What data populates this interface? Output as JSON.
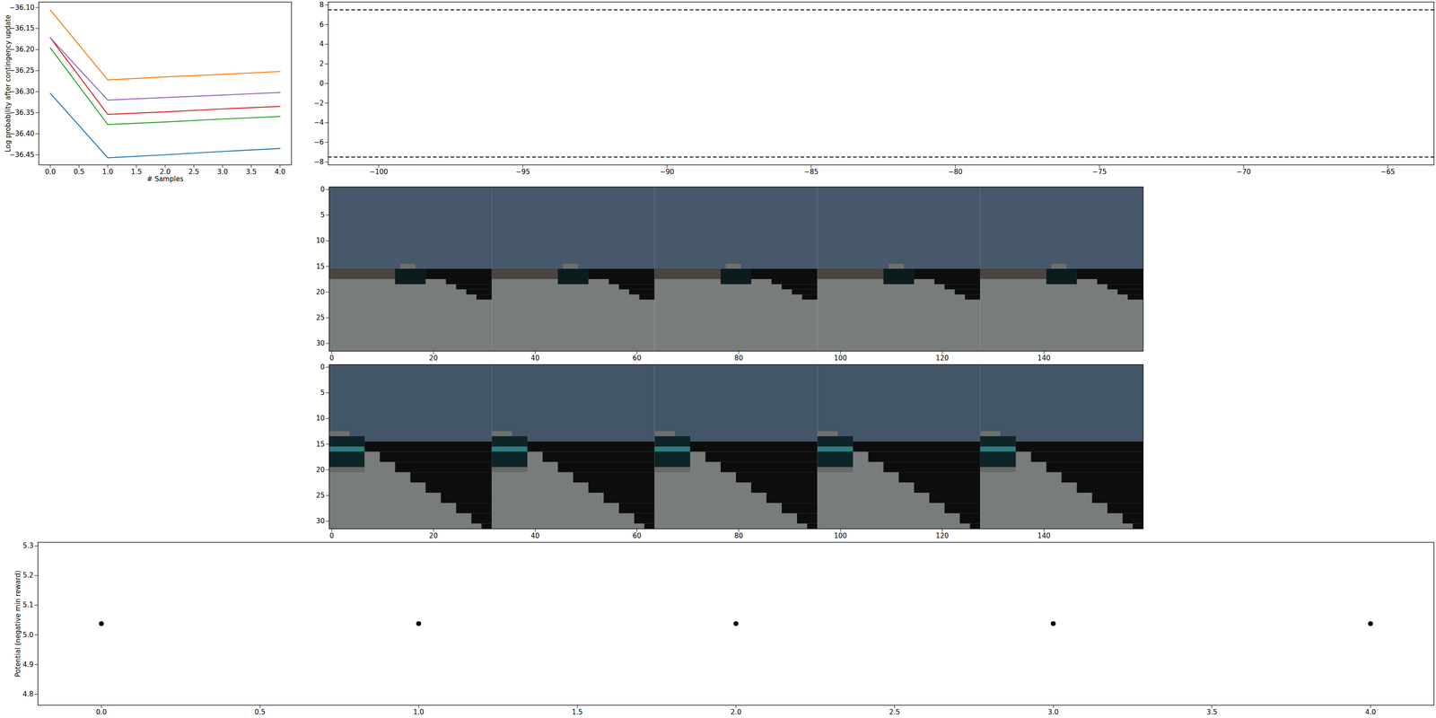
{
  "chart_data": [
    {
      "type": "line",
      "xlabel": "# Samples",
      "ylabel": "Log probability after contingency update",
      "x": [
        0,
        1,
        2,
        3,
        4
      ],
      "xlim": [
        -0.2,
        4.2
      ],
      "xticks": [
        {
          "value": 0,
          "label": "0.0"
        },
        {
          "value": 0.5,
          "label": "0.5"
        },
        {
          "value": 1,
          "label": "1.0"
        },
        {
          "value": 1.5,
          "label": "1.5"
        },
        {
          "value": 2,
          "label": "2.0"
        },
        {
          "value": 2.5,
          "label": "2.5"
        },
        {
          "value": 3,
          "label": "3.0"
        },
        {
          "value": 3.5,
          "label": "3.5"
        },
        {
          "value": 4,
          "label": "4.0"
        }
      ],
      "ylim": [
        -36.474,
        -36.087
      ],
      "yticks": [
        {
          "value": -36.45,
          "label": "−36.45"
        },
        {
          "value": -36.4,
          "label": "−36.40"
        },
        {
          "value": -36.35,
          "label": "−36.35"
        },
        {
          "value": -36.3,
          "label": "−36.30"
        },
        {
          "value": -36.25,
          "label": "−36.25"
        },
        {
          "value": -36.2,
          "label": "−36.20"
        },
        {
          "value": -36.15,
          "label": "−36.15"
        },
        {
          "value": -36.1,
          "label": "−36.10"
        }
      ],
      "series": [
        {
          "color": "#1f77b4",
          "values": [
            -36.304,
            -36.457,
            -36.45,
            -36.442,
            -36.435
          ]
        },
        {
          "color": "#ff7f0e",
          "values": [
            -36.106,
            -36.272,
            -36.265,
            -36.259,
            -36.252
          ]
        },
        {
          "color": "#2ca02c",
          "values": [
            -36.196,
            -36.378,
            -36.372,
            -36.365,
            -36.359
          ]
        },
        {
          "color": "#d62728",
          "values": [
            -36.172,
            -36.354,
            -36.348,
            -36.341,
            -36.335
          ]
        },
        {
          "color": "#9467bd",
          "values": [
            -36.172,
            -36.32,
            -36.314,
            -36.308,
            -36.302
          ]
        }
      ]
    },
    {
      "type": "line",
      "x": [],
      "series": [],
      "xlim": [
        -101.75,
        -63.4
      ],
      "xticks": [
        -100,
        -95,
        -90,
        -85,
        -80,
        -75,
        -70,
        -65
      ],
      "ylim": [
        -8.3,
        8.3
      ],
      "yticks": [
        -8,
        -6,
        -4,
        -2,
        0,
        2,
        4,
        6,
        8
      ],
      "hlines": [
        7.5,
        -7.5
      ],
      "line_style": "dashed",
      "color": "#000000"
    },
    {
      "type": "image",
      "xlim": [
        -0.5,
        159.5
      ],
      "ylim": [
        31.5,
        -0.5
      ],
      "xticks": [
        0,
        20,
        40,
        60,
        80,
        100,
        120,
        140
      ],
      "yticks": [
        0,
        5,
        10,
        15,
        20,
        25,
        30
      ],
      "frame_offsets": [
        0,
        32,
        64,
        96,
        128
      ],
      "regions": [
        {
          "x1": -0.5,
          "x2": 31.5,
          "y1": -0.5,
          "y2": 15.5,
          "color": "#465869"
        },
        {
          "x1": -0.5,
          "x2": 31.5,
          "y1": 15.5,
          "y2": 31.5,
          "color": "#787d7c"
        },
        {
          "x1": -0.5,
          "x2": 18.5,
          "y1": 15.5,
          "y2": 17.5,
          "color": "#4b4542"
        },
        {
          "x1": 13.5,
          "x2": 16.5,
          "y1": 14.5,
          "y2": 15.5,
          "color": "#6e6e6e"
        },
        {
          "x1": 12.5,
          "x2": 18.5,
          "y1": 15.5,
          "y2": 18.5,
          "color": "#0b1c1e"
        },
        {
          "x1": 18.5,
          "x2": 31.5,
          "y1": 15.5,
          "y2": 17.5,
          "color": "#0d0d0d"
        },
        {
          "x1": 22.5,
          "x2": 31.5,
          "y1": 17.5,
          "y2": 18.5,
          "color": "#0d0d0d"
        },
        {
          "x1": 24.5,
          "x2": 31.5,
          "y1": 18.5,
          "y2": 19.5,
          "color": "#0d0d0d"
        },
        {
          "x1": 26.5,
          "x2": 31.5,
          "y1": 19.5,
          "y2": 20.5,
          "color": "#0d0d0d"
        },
        {
          "x1": 28.5,
          "x2": 31.5,
          "y1": 20.5,
          "y2": 21.5,
          "color": "#0d0d0d"
        }
      ]
    },
    {
      "type": "image",
      "xlim": [
        -0.5,
        159.5
      ],
      "ylim": [
        31.5,
        -0.5
      ],
      "xticks": [
        0,
        20,
        40,
        60,
        80,
        100,
        120,
        140
      ],
      "yticks": [
        0,
        5,
        10,
        15,
        20,
        25,
        30
      ],
      "frame_offsets": [
        0,
        32,
        64,
        96,
        128
      ],
      "regions": [
        {
          "x1": -0.5,
          "x2": 31.5,
          "y1": -0.5,
          "y2": 14.5,
          "color": "#435667"
        },
        {
          "x1": -0.5,
          "x2": 31.5,
          "y1": 14.5,
          "y2": 31.5,
          "color": "#787d7c"
        },
        {
          "x1": -0.5,
          "x2": 6.5,
          "y1": 19.5,
          "y2": 20.5,
          "color": "#656a69"
        },
        {
          "x1": -0.5,
          "x2": 3.5,
          "y1": 12.5,
          "y2": 13.5,
          "color": "#6e6e6e"
        },
        {
          "x1": -0.5,
          "x2": 6.5,
          "y1": 13.5,
          "y2": 19.5,
          "color": "#0e2426"
        },
        {
          "x1": -0.5,
          "x2": 6.5,
          "y1": 15.5,
          "y2": 16.5,
          "color": "#2c7d80"
        },
        {
          "x1": 6.5,
          "x2": 31.5,
          "y1": 14.5,
          "y2": 16.5,
          "color": "#0d0d0d"
        },
        {
          "x1": 9.5,
          "x2": 31.5,
          "y1": 16.5,
          "y2": 18.5,
          "color": "#0d0d0d"
        },
        {
          "x1": 12.5,
          "x2": 31.5,
          "y1": 18.5,
          "y2": 20.5,
          "color": "#0d0d0d"
        },
        {
          "x1": 15.5,
          "x2": 31.5,
          "y1": 20.5,
          "y2": 22.5,
          "color": "#0d0d0d"
        },
        {
          "x1": 18.5,
          "x2": 31.5,
          "y1": 22.5,
          "y2": 24.5,
          "color": "#0d0d0d"
        },
        {
          "x1": 21.5,
          "x2": 31.5,
          "y1": 24.5,
          "y2": 26.5,
          "color": "#0d0d0d"
        },
        {
          "x1": 24.5,
          "x2": 31.5,
          "y1": 26.5,
          "y2": 28.5,
          "color": "#0d0d0d"
        },
        {
          "x1": 27.5,
          "x2": 31.5,
          "y1": 28.5,
          "y2": 30.5,
          "color": "#0d0d0d"
        },
        {
          "x1": 29.5,
          "x2": 31.5,
          "y1": 30.5,
          "y2": 31.5,
          "color": "#0d0d0d"
        }
      ]
    },
    {
      "type": "scatter",
      "ylabel": "Potential (negative min reward)",
      "x": [
        0,
        1,
        2,
        3,
        4
      ],
      "values": [
        5.038,
        5.038,
        5.038,
        5.038,
        5.038
      ],
      "color": "#000000",
      "marker": "circle",
      "xlim": [
        -0.2,
        4.2
      ],
      "xticks": [
        {
          "value": 0,
          "label": "0.0"
        },
        {
          "value": 0.5,
          "label": "0.5"
        },
        {
          "value": 1,
          "label": "1.0"
        },
        {
          "value": 1.5,
          "label": "1.5"
        },
        {
          "value": 2,
          "label": "2.0"
        },
        {
          "value": 2.5,
          "label": "2.5"
        },
        {
          "value": 3,
          "label": "3.0"
        },
        {
          "value": 3.5,
          "label": "3.5"
        },
        {
          "value": 4,
          "label": "4.0"
        }
      ],
      "ylim": [
        4.763,
        5.312
      ],
      "yticks": [
        {
          "value": 4.8,
          "label": "4.8"
        },
        {
          "value": 4.9,
          "label": "4.9"
        },
        {
          "value": 5,
          "label": "5.0"
        },
        {
          "value": 5.1,
          "label": "5.1"
        },
        {
          "value": 5.2,
          "label": "5.2"
        },
        {
          "value": 5.3,
          "label": "5.3"
        }
      ]
    }
  ]
}
